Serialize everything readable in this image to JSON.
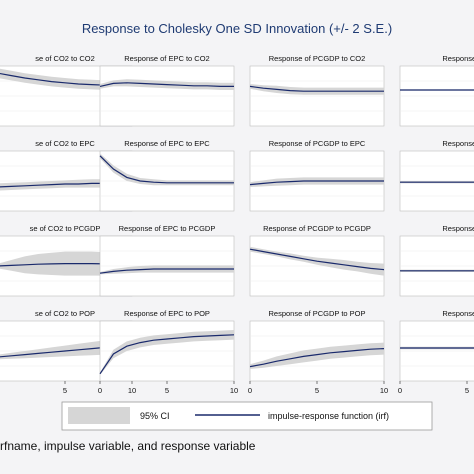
{
  "figure": {
    "title": "Response to Cholesky One SD Innovation (+/- 2 S.E.)",
    "footer_caption": "rfname, impulse variable, and response variable",
    "legend": {
      "ci_label": "95% CI",
      "irf_label": "impulse-response function (irf)"
    },
    "colors": {
      "title": "#1f3b73",
      "ci_band": "#d6d6d6",
      "irf_line": "#1a2a6c",
      "panel_bg": "#ffffff",
      "page_bg": "#ffffff"
    }
  },
  "chart_data": {
    "type": "line",
    "x_ticks_bottom": [
      "0",
      "5",
      "10"
    ],
    "panels": [
      {
        "title": "se of CO2 to CO2",
        "x": [
          0,
          1,
          2,
          3,
          4,
          5,
          6,
          7,
          8,
          9,
          10
        ],
        "irf": [
          0.88,
          0.84,
          0.8,
          0.77,
          0.74,
          0.72,
          0.7,
          0.69,
          0.68,
          0.67,
          0.66
        ],
        "lower": [
          0.8,
          0.76,
          0.72,
          0.69,
          0.66,
          0.64,
          0.62,
          0.61,
          0.6,
          0.59,
          0.58
        ],
        "upper": [
          0.96,
          0.92,
          0.88,
          0.85,
          0.82,
          0.8,
          0.78,
          0.77,
          0.76,
          0.75,
          0.74
        ]
      },
      {
        "title": "Response of EPC to CO2",
        "x": [
          0,
          1,
          2,
          3,
          4,
          5,
          6,
          7,
          8,
          9,
          10
        ],
        "irf": [
          0.66,
          0.71,
          0.72,
          0.71,
          0.7,
          0.69,
          0.68,
          0.67,
          0.67,
          0.66,
          0.66
        ],
        "lower": [
          0.62,
          0.66,
          0.66,
          0.65,
          0.64,
          0.63,
          0.62,
          0.61,
          0.61,
          0.6,
          0.6
        ],
        "upper": [
          0.7,
          0.76,
          0.78,
          0.77,
          0.76,
          0.75,
          0.74,
          0.73,
          0.73,
          0.72,
          0.72
        ]
      },
      {
        "title": "Response of PCGDP to CO2",
        "x": [
          0,
          1,
          2,
          3,
          4,
          5,
          6,
          7,
          8,
          9,
          10
        ],
        "irf": [
          0.66,
          0.63,
          0.61,
          0.59,
          0.58,
          0.58,
          0.58,
          0.58,
          0.58,
          0.58,
          0.58
        ],
        "lower": [
          0.62,
          0.58,
          0.55,
          0.53,
          0.52,
          0.52,
          0.52,
          0.52,
          0.52,
          0.52,
          0.52
        ],
        "upper": [
          0.7,
          0.68,
          0.67,
          0.65,
          0.64,
          0.64,
          0.64,
          0.64,
          0.64,
          0.64,
          0.64
        ]
      },
      {
        "title": "Response of P",
        "x": [
          0,
          1,
          2,
          3,
          4,
          5,
          6,
          7,
          8,
          9,
          10
        ],
        "irf": [
          0.6,
          0.6,
          0.6,
          0.6,
          0.6,
          0.6,
          0.6,
          0.6,
          0.6,
          0.6,
          0.6
        ],
        "lower": [
          0.59,
          0.59,
          0.59,
          0.59,
          0.59,
          0.59,
          0.59,
          0.59,
          0.59,
          0.59,
          0.59
        ],
        "upper": [
          0.61,
          0.61,
          0.61,
          0.61,
          0.61,
          0.61,
          0.61,
          0.61,
          0.61,
          0.61,
          0.61
        ]
      },
      {
        "title": "se of CO2 to EPC",
        "x": [
          0,
          1,
          2,
          3,
          4,
          5,
          6,
          7,
          8,
          9,
          10
        ],
        "irf": [
          0.4,
          0.41,
          0.42,
          0.43,
          0.44,
          0.45,
          0.45,
          0.46,
          0.46,
          0.46,
          0.46
        ],
        "lower": [
          0.34,
          0.35,
          0.36,
          0.37,
          0.38,
          0.39,
          0.39,
          0.39,
          0.39,
          0.39,
          0.39
        ],
        "upper": [
          0.46,
          0.47,
          0.48,
          0.49,
          0.5,
          0.51,
          0.52,
          0.53,
          0.53,
          0.53,
          0.53
        ]
      },
      {
        "title": "Response of EPC to EPC",
        "x": [
          0,
          1,
          2,
          3,
          4,
          5,
          6,
          7,
          8,
          9,
          10
        ],
        "irf": [
          0.92,
          0.7,
          0.56,
          0.5,
          0.48,
          0.47,
          0.47,
          0.47,
          0.47,
          0.47,
          0.47
        ],
        "lower": [
          0.88,
          0.64,
          0.5,
          0.45,
          0.43,
          0.43,
          0.43,
          0.43,
          0.43,
          0.43,
          0.43
        ],
        "upper": [
          0.96,
          0.76,
          0.62,
          0.55,
          0.53,
          0.51,
          0.51,
          0.51,
          0.51,
          0.51,
          0.51
        ]
      },
      {
        "title": "Response of PCGDP to EPC",
        "x": [
          0,
          1,
          2,
          3,
          4,
          5,
          6,
          7,
          8,
          9,
          10
        ],
        "irf": [
          0.44,
          0.46,
          0.48,
          0.49,
          0.5,
          0.5,
          0.5,
          0.5,
          0.5,
          0.5,
          0.5
        ],
        "lower": [
          0.4,
          0.41,
          0.42,
          0.43,
          0.44,
          0.44,
          0.44,
          0.44,
          0.44,
          0.44,
          0.44
        ],
        "upper": [
          0.48,
          0.51,
          0.54,
          0.55,
          0.56,
          0.56,
          0.56,
          0.56,
          0.56,
          0.56,
          0.56
        ]
      },
      {
        "title": "Response of P",
        "x": [
          0,
          1,
          2,
          3,
          4,
          5,
          6,
          7,
          8,
          9,
          10
        ],
        "irf": [
          0.48,
          0.48,
          0.48,
          0.48,
          0.48,
          0.48,
          0.48,
          0.48,
          0.48,
          0.48,
          0.48
        ],
        "lower": [
          0.46,
          0.46,
          0.46,
          0.46,
          0.46,
          0.46,
          0.46,
          0.46,
          0.46,
          0.46,
          0.46
        ],
        "upper": [
          0.5,
          0.5,
          0.5,
          0.5,
          0.5,
          0.5,
          0.5,
          0.5,
          0.5,
          0.5,
          0.5
        ]
      },
      {
        "title": "se of CO2 to PCGDP",
        "x": [
          0,
          1,
          2,
          3,
          4,
          5,
          6,
          7,
          8,
          9,
          10
        ],
        "irf": [
          0.5,
          0.51,
          0.52,
          0.53,
          0.535,
          0.54,
          0.54,
          0.54,
          0.535,
          0.53,
          0.53
        ],
        "lower": [
          0.46,
          0.42,
          0.38,
          0.36,
          0.35,
          0.34,
          0.34,
          0.34,
          0.34,
          0.34,
          0.35
        ],
        "upper": [
          0.54,
          0.6,
          0.66,
          0.7,
          0.72,
          0.74,
          0.74,
          0.74,
          0.73,
          0.72,
          0.71
        ]
      },
      {
        "title": "Response of EPC to PCGDP",
        "x": [
          0,
          1,
          2,
          3,
          4,
          5,
          6,
          7,
          8,
          9,
          10
        ],
        "irf": [
          0.38,
          0.41,
          0.43,
          0.44,
          0.45,
          0.45,
          0.45,
          0.45,
          0.45,
          0.45,
          0.45
        ],
        "lower": [
          0.36,
          0.37,
          0.38,
          0.39,
          0.39,
          0.39,
          0.39,
          0.39,
          0.39,
          0.39,
          0.39
        ],
        "upper": [
          0.4,
          0.45,
          0.48,
          0.5,
          0.51,
          0.51,
          0.51,
          0.51,
          0.51,
          0.51,
          0.51
        ]
      },
      {
        "title": "Response of PCGDP to PCGDP",
        "x": [
          0,
          1,
          2,
          3,
          4,
          5,
          6,
          7,
          8,
          9,
          10
        ],
        "irf": [
          0.78,
          0.74,
          0.7,
          0.66,
          0.62,
          0.58,
          0.55,
          0.52,
          0.49,
          0.46,
          0.44
        ],
        "lower": [
          0.74,
          0.7,
          0.66,
          0.61,
          0.57,
          0.52,
          0.48,
          0.44,
          0.41,
          0.37,
          0.34
        ],
        "upper": [
          0.82,
          0.78,
          0.74,
          0.71,
          0.67,
          0.64,
          0.62,
          0.6,
          0.57,
          0.55,
          0.54
        ]
      },
      {
        "title": "Response of P",
        "x": [
          0,
          1,
          2,
          3,
          4,
          5,
          6,
          7,
          8,
          9,
          10
        ],
        "irf": [
          0.42,
          0.42,
          0.42,
          0.42,
          0.42,
          0.42,
          0.42,
          0.42,
          0.42,
          0.42,
          0.42
        ],
        "lower": [
          0.4,
          0.4,
          0.4,
          0.4,
          0.4,
          0.4,
          0.4,
          0.4,
          0.4,
          0.4,
          0.4
        ],
        "upper": [
          0.44,
          0.44,
          0.44,
          0.44,
          0.44,
          0.44,
          0.44,
          0.44,
          0.44,
          0.44,
          0.44
        ]
      },
      {
        "title": "se of CO2 to POP",
        "x": [
          0,
          1,
          2,
          3,
          4,
          5,
          6,
          7,
          8,
          9,
          10
        ],
        "irf": [
          0.4,
          0.42,
          0.44,
          0.46,
          0.48,
          0.5,
          0.52,
          0.54,
          0.56,
          0.58,
          0.6
        ],
        "lower": [
          0.36,
          0.37,
          0.38,
          0.39,
          0.4,
          0.41,
          0.42,
          0.43,
          0.44,
          0.45,
          0.46
        ],
        "upper": [
          0.44,
          0.47,
          0.5,
          0.53,
          0.56,
          0.59,
          0.62,
          0.65,
          0.68,
          0.71,
          0.74
        ]
      },
      {
        "title": "Response of EPC to POP",
        "x": [
          0,
          1,
          2,
          3,
          4,
          5,
          6,
          7,
          8,
          9,
          10
        ],
        "irf": [
          0.12,
          0.45,
          0.58,
          0.64,
          0.68,
          0.7,
          0.72,
          0.74,
          0.75,
          0.76,
          0.77
        ],
        "lower": [
          0.1,
          0.38,
          0.5,
          0.56,
          0.6,
          0.62,
          0.64,
          0.66,
          0.67,
          0.68,
          0.69
        ],
        "upper": [
          0.14,
          0.52,
          0.66,
          0.72,
          0.76,
          0.78,
          0.8,
          0.82,
          0.83,
          0.84,
          0.85
        ]
      },
      {
        "title": "Response of PCGDP to POP",
        "x": [
          0,
          1,
          2,
          3,
          4,
          5,
          6,
          7,
          8,
          9,
          10
        ],
        "irf": [
          0.24,
          0.28,
          0.33,
          0.37,
          0.41,
          0.44,
          0.47,
          0.49,
          0.51,
          0.53,
          0.54
        ],
        "lower": [
          0.2,
          0.22,
          0.25,
          0.28,
          0.31,
          0.34,
          0.37,
          0.39,
          0.41,
          0.43,
          0.44
        ],
        "upper": [
          0.28,
          0.34,
          0.41,
          0.46,
          0.51,
          0.54,
          0.57,
          0.59,
          0.61,
          0.63,
          0.64
        ]
      },
      {
        "title": "Response of P",
        "x": [
          0,
          1,
          2,
          3,
          4,
          5,
          6,
          7,
          8,
          9,
          10
        ],
        "irf": [
          0.55,
          0.55,
          0.55,
          0.55,
          0.55,
          0.55,
          0.55,
          0.55,
          0.55,
          0.55,
          0.55
        ],
        "lower": [
          0.53,
          0.53,
          0.53,
          0.53,
          0.53,
          0.53,
          0.53,
          0.53,
          0.53,
          0.53,
          0.53
        ],
        "upper": [
          0.57,
          0.57,
          0.57,
          0.57,
          0.57,
          0.57,
          0.57,
          0.57,
          0.57,
          0.57,
          0.57
        ]
      }
    ]
  }
}
